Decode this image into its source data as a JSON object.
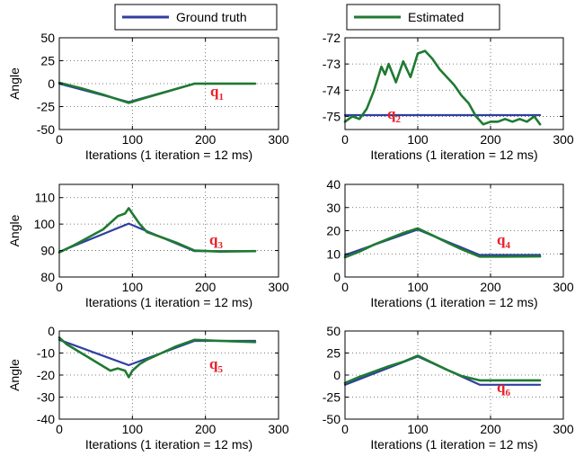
{
  "legends": [
    {
      "name": "Ground truth",
      "color": "#2e3fa0"
    },
    {
      "name": "Estimated",
      "color": "#1f7a32"
    }
  ],
  "chart_data": [
    {
      "type": "line",
      "label": "q",
      "sub": "1",
      "xlabel": "Iterations (1 iteration = 12 ms)",
      "ylabel": "Angle",
      "xlim": [
        0,
        300
      ],
      "ylim": [
        -50,
        50
      ],
      "xticks": [
        0,
        100,
        200,
        300
      ],
      "yticks": [
        -50,
        -25,
        0,
        25,
        50
      ],
      "grid": true,
      "series": [
        {
          "name": "Ground truth",
          "color": "#2e3fa0",
          "x": [
            0,
            95,
            185,
            268
          ],
          "y": [
            0,
            -20,
            0,
            0
          ]
        },
        {
          "name": "Estimated",
          "color": "#1f7a32",
          "x": [
            0,
            30,
            60,
            95,
            120,
            150,
            185,
            220,
            268
          ],
          "y": [
            1,
            -5,
            -12,
            -21,
            -15,
            -8,
            0,
            0,
            0
          ]
        }
      ]
    },
    {
      "type": "line",
      "label": "q",
      "sub": "2",
      "xlabel": "Iterations (1 iteration = 12 ms)",
      "ylabel": "",
      "xlim": [
        0,
        300
      ],
      "ylim": [
        -75.5,
        -72
      ],
      "xticks": [
        0,
        100,
        200,
        300
      ],
      "yticks": [
        -75,
        -74,
        -73,
        -72
      ],
      "grid": true,
      "series": [
        {
          "name": "Ground truth",
          "color": "#2e3fa0",
          "x": [
            0,
            268
          ],
          "y": [
            -74.95,
            -74.95
          ]
        },
        {
          "name": "Estimated",
          "color": "#1f7a32",
          "x": [
            0,
            10,
            20,
            30,
            40,
            50,
            55,
            60,
            70,
            80,
            90,
            100,
            110,
            120,
            130,
            140,
            150,
            160,
            170,
            180,
            190,
            200,
            210,
            220,
            230,
            240,
            250,
            260,
            268
          ],
          "y": [
            -75.2,
            -75.0,
            -75.1,
            -74.7,
            -74.0,
            -73.1,
            -73.4,
            -73.0,
            -73.7,
            -72.9,
            -73.5,
            -72.6,
            -72.5,
            -72.8,
            -73.2,
            -73.5,
            -73.8,
            -74.2,
            -74.5,
            -75.0,
            -75.3,
            -75.2,
            -75.2,
            -75.1,
            -75.2,
            -75.1,
            -75.2,
            -75.0,
            -75.3
          ]
        }
      ]
    },
    {
      "type": "line",
      "label": "q",
      "sub": "3",
      "xlabel": "Iterations (1 iteration = 12 ms)",
      "ylabel": "Angle",
      "xlim": [
        0,
        300
      ],
      "ylim": [
        80,
        115
      ],
      "xticks": [
        0,
        100,
        200,
        300
      ],
      "yticks": [
        80,
        90,
        100,
        110
      ],
      "grid": true,
      "series": [
        {
          "name": "Ground truth",
          "color": "#2e3fa0",
          "x": [
            0,
            95,
            185,
            268
          ],
          "y": [
            89.5,
            100.2,
            89.8,
            89.8
          ]
        },
        {
          "name": "Estimated",
          "color": "#1f7a32",
          "x": [
            0,
            20,
            40,
            60,
            80,
            90,
            95,
            100,
            110,
            120,
            140,
            160,
            185,
            220,
            268
          ],
          "y": [
            89.3,
            92,
            95,
            98,
            103,
            104,
            106,
            104,
            100,
            97,
            95,
            93,
            90,
            89.6,
            89.8
          ]
        }
      ]
    },
    {
      "type": "line",
      "label": "q",
      "sub": "4",
      "xlabel": "Iterations (1 iteration = 12 ms)",
      "ylabel": "",
      "xlim": [
        0,
        300
      ],
      "ylim": [
        0,
        40
      ],
      "xticks": [
        0,
        100,
        200,
        300
      ],
      "yticks": [
        0,
        10,
        20,
        30,
        40
      ],
      "grid": true,
      "series": [
        {
          "name": "Ground truth",
          "color": "#2e3fa0",
          "x": [
            0,
            100,
            185,
            268
          ],
          "y": [
            9.5,
            20.5,
            9.5,
            9.5
          ]
        },
        {
          "name": "Estimated",
          "color": "#1f7a32",
          "x": [
            0,
            20,
            40,
            60,
            80,
            100,
            120,
            140,
            160,
            185,
            220,
            268
          ],
          "y": [
            8.5,
            11,
            14,
            16.5,
            19,
            21,
            18,
            15,
            12,
            8.8,
            8.8,
            8.9
          ]
        }
      ]
    },
    {
      "type": "line",
      "label": "q",
      "sub": "5",
      "xlabel": "Iterations (1 iteration = 12 ms)",
      "ylabel": "Angle",
      "xlim": [
        0,
        300
      ],
      "ylim": [
        -40,
        0
      ],
      "xticks": [
        0,
        100,
        200,
        300
      ],
      "yticks": [
        -40,
        -30,
        -20,
        -10,
        0
      ],
      "grid": true,
      "series": [
        {
          "name": "Ground truth",
          "color": "#2e3fa0",
          "x": [
            0,
            95,
            185,
            268
          ],
          "y": [
            -4,
            -15.5,
            -4.5,
            -4.5
          ]
        },
        {
          "name": "Estimated",
          "color": "#1f7a32",
          "x": [
            0,
            10,
            20,
            40,
            60,
            70,
            80,
            90,
            95,
            100,
            110,
            120,
            140,
            160,
            185,
            220,
            268
          ],
          "y": [
            -3,
            -6,
            -8,
            -12,
            -16,
            -18,
            -17,
            -18,
            -21,
            -18,
            -15,
            -13,
            -10,
            -7,
            -4,
            -4.5,
            -5
          ]
        }
      ]
    },
    {
      "type": "line",
      "label": "q",
      "sub": "6",
      "xlabel": "Iterations (1 iteration = 12 ms)",
      "ylabel": "",
      "xlim": [
        0,
        300
      ],
      "ylim": [
        -50,
        50
      ],
      "xticks": [
        0,
        100,
        200,
        300
      ],
      "yticks": [
        -50,
        -25,
        0,
        25,
        50
      ],
      "grid": true,
      "series": [
        {
          "name": "Ground truth",
          "color": "#2e3fa0",
          "x": [
            0,
            100,
            185,
            268
          ],
          "y": [
            -11,
            21,
            -11,
            -11
          ]
        },
        {
          "name": "Estimated",
          "color": "#1f7a32",
          "x": [
            0,
            20,
            40,
            60,
            80,
            100,
            120,
            140,
            160,
            185,
            220,
            268
          ],
          "y": [
            -9,
            -2,
            4,
            10,
            15,
            22,
            14,
            6,
            -1,
            -6,
            -6,
            -6
          ]
        }
      ]
    }
  ]
}
